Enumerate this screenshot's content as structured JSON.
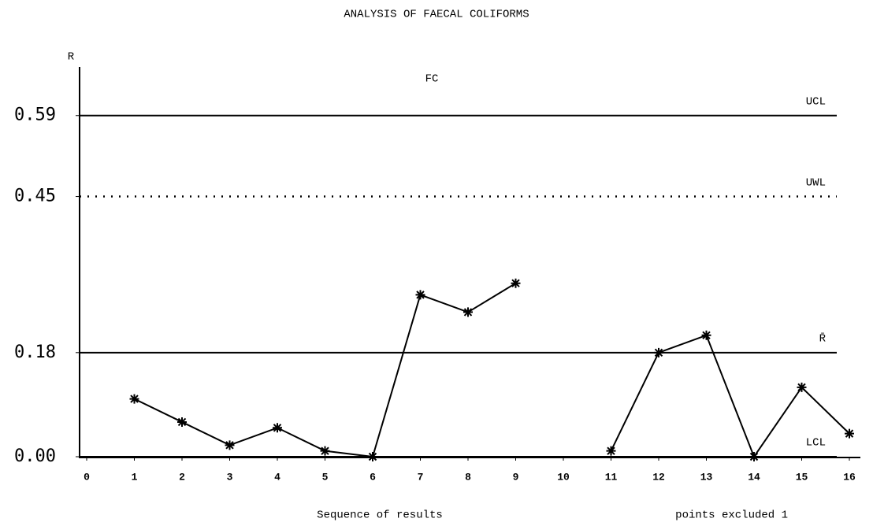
{
  "chart_data": {
    "type": "line",
    "title": "ANALYSIS OF FAECAL COLIFORMS",
    "subtitle": "FC",
    "ylabel": "R",
    "xlabel": "Sequence of results",
    "annotation": "points excluded 1",
    "x": [
      1,
      2,
      3,
      4,
      5,
      6,
      7,
      8,
      9,
      10,
      11,
      12,
      13,
      14,
      15,
      16
    ],
    "series": [
      {
        "color": "#000000",
        "values": [
          0.1,
          0.06,
          0.02,
          0.05,
          0.01,
          0.0,
          0.28,
          0.25,
          0.3,
          null,
          0.01,
          0.18,
          0.21,
          0.0,
          0.12,
          0.04
        ]
      }
    ],
    "xlim": [
      0,
      16
    ],
    "xticks": [
      0,
      1,
      2,
      3,
      4,
      5,
      6,
      7,
      8,
      9,
      10,
      11,
      12,
      13,
      14,
      15,
      16
    ],
    "ylim": [
      0,
      0.67
    ],
    "yticks": [
      {
        "value": 0,
        "label": "0.00"
      },
      0.18,
      0.45,
      0.59
    ],
    "lines": [
      {
        "label": "UCL",
        "value": 0.59,
        "style": "solid"
      },
      {
        "label": "UWL",
        "value": 0.45,
        "style": "dotted"
      },
      {
        "label": "R̄",
        "value": 0.18,
        "style": "solid"
      },
      {
        "label": "LCL",
        "value": 0,
        "style": "solid"
      }
    ]
  }
}
